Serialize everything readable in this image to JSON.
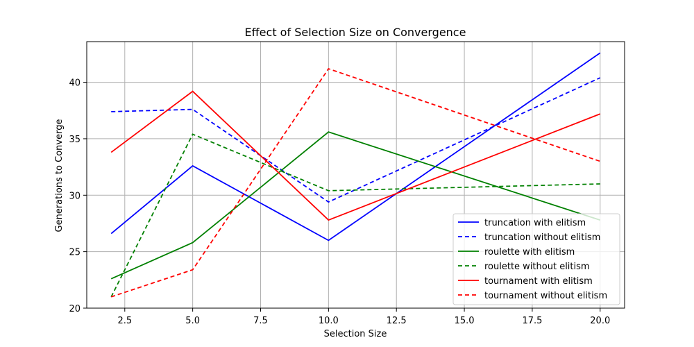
{
  "chart_data": {
    "type": "line",
    "title": "Effect of Selection Size on Convergence",
    "xlabel": "Selection Size",
    "ylabel": "Generations to Converge",
    "x": [
      2,
      5,
      10,
      20
    ],
    "xlim": [
      1.1,
      20.9
    ],
    "ylim": [
      20,
      43.6
    ],
    "xticks": [
      2.5,
      5.0,
      7.5,
      10.0,
      12.5,
      15.0,
      17.5,
      20.0
    ],
    "xtick_labels": [
      "2.5",
      "5.0",
      "7.5",
      "10.0",
      "12.5",
      "15.0",
      "17.5",
      "20.0"
    ],
    "yticks": [
      20,
      25,
      30,
      35,
      40
    ],
    "ytick_labels": [
      "20",
      "25",
      "30",
      "35",
      "40"
    ],
    "grid": true,
    "legend_position": "lower right",
    "series": [
      {
        "name": "truncation with elitism",
        "values": [
          26.6,
          32.6,
          26.0,
          42.6
        ],
        "color": "#0000ff",
        "style": "solid"
      },
      {
        "name": "truncation without elitism",
        "values": [
          37.4,
          37.6,
          29.4,
          40.4
        ],
        "color": "#0000ff",
        "style": "dashed"
      },
      {
        "name": "roulette with elitism",
        "values": [
          22.6,
          25.8,
          35.6,
          27.8
        ],
        "color": "#008000",
        "style": "solid"
      },
      {
        "name": "roulette without elitism",
        "values": [
          21.0,
          35.4,
          30.4,
          31.0
        ],
        "color": "#008000",
        "style": "dashed"
      },
      {
        "name": "tournament with elitism",
        "values": [
          33.8,
          39.2,
          27.8,
          37.2
        ],
        "color": "#ff0000",
        "style": "solid"
      },
      {
        "name": "tournament without elitism",
        "values": [
          21.0,
          23.4,
          41.2,
          33.0
        ],
        "color": "#ff0000",
        "style": "dashed"
      }
    ]
  }
}
